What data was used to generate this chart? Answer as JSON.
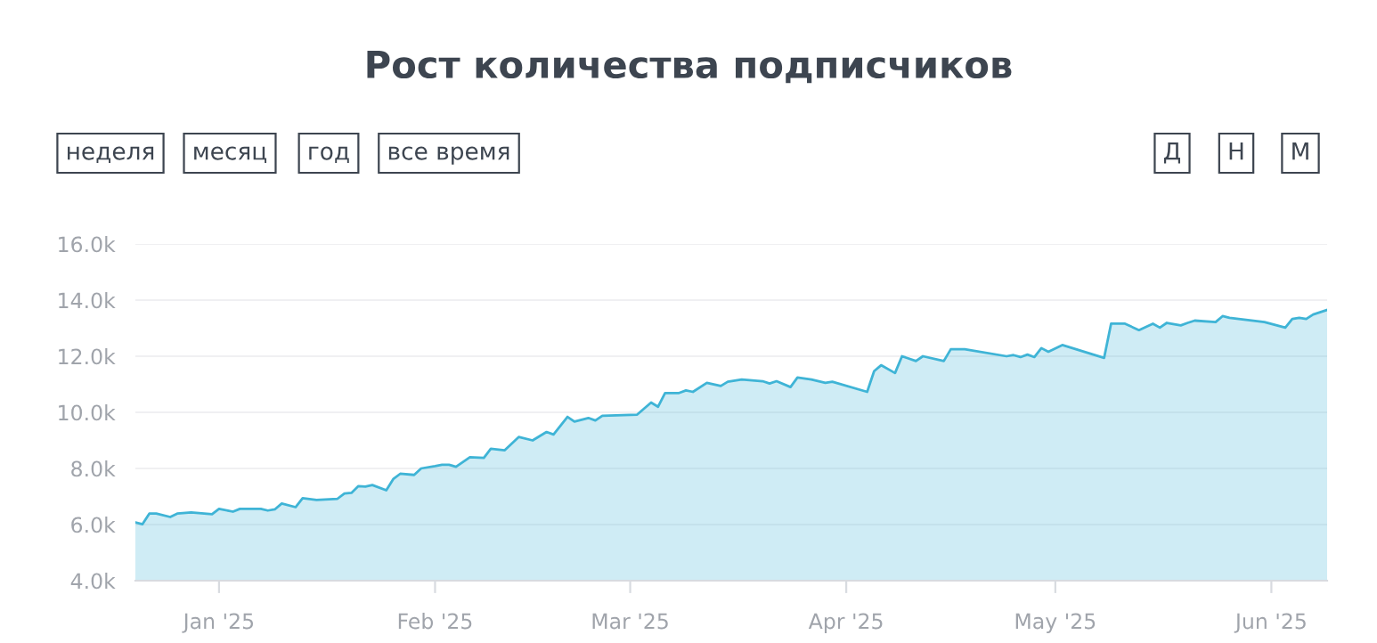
{
  "chart_data": {
    "type": "area",
    "title": "Рост количества подписчиков",
    "annotations": [
      "неделя",
      "месяц",
      "год",
      "все время",
      "Д",
      "Н",
      "М"
    ],
    "x": [
      "2024-12-20",
      "2024-12-21",
      "2024-12-22",
      "2024-12-23",
      "2024-12-25",
      "2024-12-26",
      "2024-12-28",
      "2024-12-31",
      "2025-01-01",
      "2025-01-03",
      "2025-01-04",
      "2025-01-07",
      "2025-01-08",
      "2025-01-09",
      "2025-01-10",
      "2025-01-12",
      "2025-01-13",
      "2025-01-15",
      "2025-01-18",
      "2025-01-19",
      "2025-01-20",
      "2025-01-21",
      "2025-01-22",
      "2025-01-23",
      "2025-01-25",
      "2025-01-26",
      "2025-01-27",
      "2025-01-29",
      "2025-01-30",
      "2025-02-01",
      "2025-02-02",
      "2025-02-03",
      "2025-02-04",
      "2025-02-06",
      "2025-02-08",
      "2025-02-09",
      "2025-02-11",
      "2025-02-13",
      "2025-02-15",
      "2025-02-17",
      "2025-02-18",
      "2025-02-20",
      "2025-02-21",
      "2025-02-23",
      "2025-02-24",
      "2025-02-25",
      "2025-03-02",
      "2025-03-04",
      "2025-03-05",
      "2025-03-06",
      "2025-03-08",
      "2025-03-09",
      "2025-03-10",
      "2025-03-12",
      "2025-03-14",
      "2025-03-15",
      "2025-03-17",
      "2025-03-20",
      "2025-03-21",
      "2025-03-22",
      "2025-03-24",
      "2025-03-25",
      "2025-03-27",
      "2025-03-29",
      "2025-03-30",
      "2025-04-04",
      "2025-04-05",
      "2025-04-06",
      "2025-04-08",
      "2025-04-09",
      "2025-04-11",
      "2025-04-12",
      "2025-04-15",
      "2025-04-16",
      "2025-04-18",
      "2025-04-24",
      "2025-04-25",
      "2025-04-26",
      "2025-04-27",
      "2025-04-28",
      "2025-04-29",
      "2025-04-30",
      "2025-05-02",
      "2025-05-08",
      "2025-05-09",
      "2025-05-11",
      "2025-05-13",
      "2025-05-15",
      "2025-05-16",
      "2025-05-17",
      "2025-05-19",
      "2025-05-20",
      "2025-05-21",
      "2025-05-24",
      "2025-05-25",
      "2025-05-26",
      "2025-05-31",
      "2025-06-03",
      "2025-06-04",
      "2025-06-05",
      "2025-06-06",
      "2025-06-07",
      "2025-06-09"
    ],
    "series": [
      {
        "color": "#3fb4d6",
        "values": [
          6.08,
          6.01,
          6.39,
          6.39,
          6.27,
          6.39,
          6.43,
          6.37,
          6.56,
          6.46,
          6.56,
          6.56,
          6.5,
          6.54,
          6.75,
          6.62,
          6.94,
          6.88,
          6.92,
          7.11,
          7.13,
          7.37,
          7.35,
          7.41,
          7.22,
          7.62,
          7.81,
          7.77,
          8.0,
          8.08,
          8.13,
          8.13,
          8.06,
          8.4,
          8.38,
          8.7,
          8.65,
          9.12,
          9.0,
          9.3,
          9.21,
          9.84,
          9.67,
          9.8,
          9.71,
          9.88,
          9.92,
          10.35,
          10.2,
          10.69,
          10.69,
          10.78,
          10.73,
          11.05,
          10.94,
          11.09,
          11.17,
          11.11,
          11.03,
          11.11,
          10.9,
          11.24,
          11.17,
          11.05,
          11.09,
          10.73,
          11.47,
          11.68,
          11.4,
          12.0,
          11.83,
          12.0,
          11.83,
          12.25,
          12.25,
          12.0,
          12.04,
          11.97,
          12.06,
          11.97,
          12.29,
          12.16,
          12.4,
          11.94,
          13.16,
          13.16,
          12.93,
          13.16,
          13.02,
          13.19,
          13.1,
          13.19,
          13.27,
          13.22,
          13.43,
          13.37,
          13.22,
          13.02,
          13.33,
          13.37,
          13.33,
          13.49,
          13.65
        ]
      }
    ],
    "xlim": [
      "2024-12-20",
      "2025-06-09"
    ],
    "xticks": [
      {
        "value": "2025-01-01",
        "label": "Jan '25"
      },
      {
        "value": "2025-02-01",
        "label": "Feb '25"
      },
      {
        "value": "2025-03-01",
        "label": "Mar '25"
      },
      {
        "value": "2025-04-01",
        "label": "Apr '25"
      },
      {
        "value": "2025-05-01",
        "label": "May '25"
      },
      {
        "value": "2025-06-01",
        "label": "Jun '25"
      }
    ],
    "ylim": [
      4,
      16
    ],
    "yticks": [
      {
        "value": 4,
        "label": "4.0k"
      },
      {
        "value": 6,
        "label": "6.0k"
      },
      {
        "value": 8,
        "label": "8.0k"
      },
      {
        "value": 10,
        "label": "10.0k"
      },
      {
        "value": 12,
        "label": "12.0k"
      },
      {
        "value": 14,
        "label": "14.0k"
      },
      {
        "value": 16,
        "label": "16.0k"
      }
    ],
    "grid": "y",
    "legend": false
  }
}
